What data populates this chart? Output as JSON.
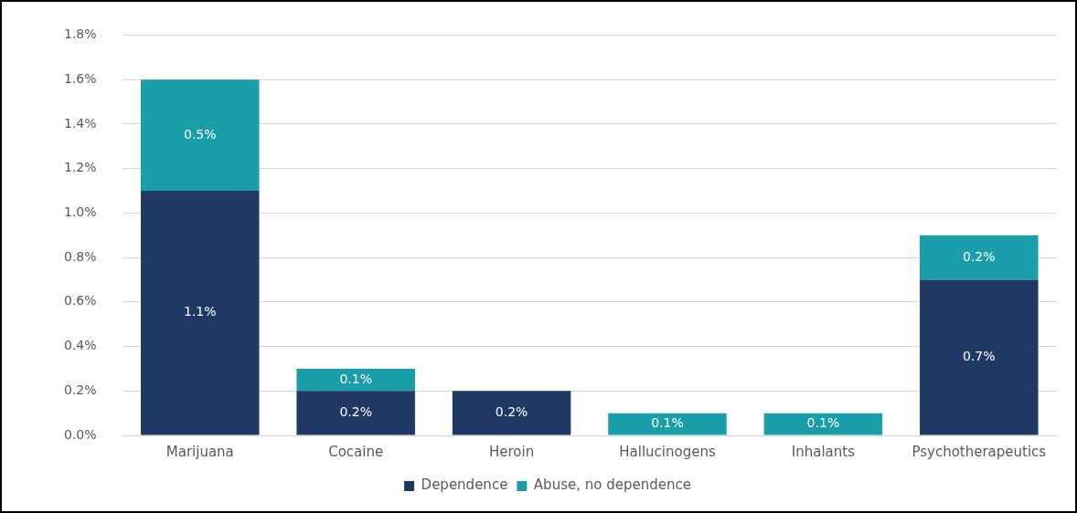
{
  "chart_data": {
    "type": "bar",
    "stacked": true,
    "categories": [
      "Marijuana",
      "Cocaine",
      "Heroin",
      "Hallucinogens",
      "Inhalants",
      "Psychotherapeutics"
    ],
    "series": [
      {
        "name": "Dependence",
        "color": "#203864",
        "values": [
          1.1,
          0.2,
          0.2,
          0,
          0,
          0.7
        ],
        "value_labels": [
          "1.1%",
          "0.2%",
          "0.2%",
          null,
          null,
          "0.7%"
        ]
      },
      {
        "name": "Abuse, no dependence",
        "color": "#1a9eaa",
        "values": [
          0.5,
          0.1,
          0,
          0.1,
          0.1,
          0.2
        ],
        "value_labels": [
          "0.5%",
          "0.1%",
          null,
          "0.1%",
          "0.1%",
          "0.2%"
        ]
      }
    ],
    "ylim": [
      0,
      1.8
    ],
    "yticks": [
      {
        "value": 0,
        "label": "0.0%"
      },
      {
        "value": 0.2,
        "label": "0.2%"
      },
      {
        "value": 0.4,
        "label": "0.4%"
      },
      {
        "value": 0.6,
        "label": "0.6%"
      },
      {
        "value": 0.8,
        "label": "0.8%"
      },
      {
        "value": 1.0,
        "label": "1.0%"
      },
      {
        "value": 1.2,
        "label": "1.2%"
      },
      {
        "value": 1.4,
        "label": "1.4%"
      },
      {
        "value": 1.6,
        "label": "1.6%"
      },
      {
        "value": 1.8,
        "label": "1.8%"
      }
    ],
    "grid": "y",
    "legend": "bottom"
  }
}
